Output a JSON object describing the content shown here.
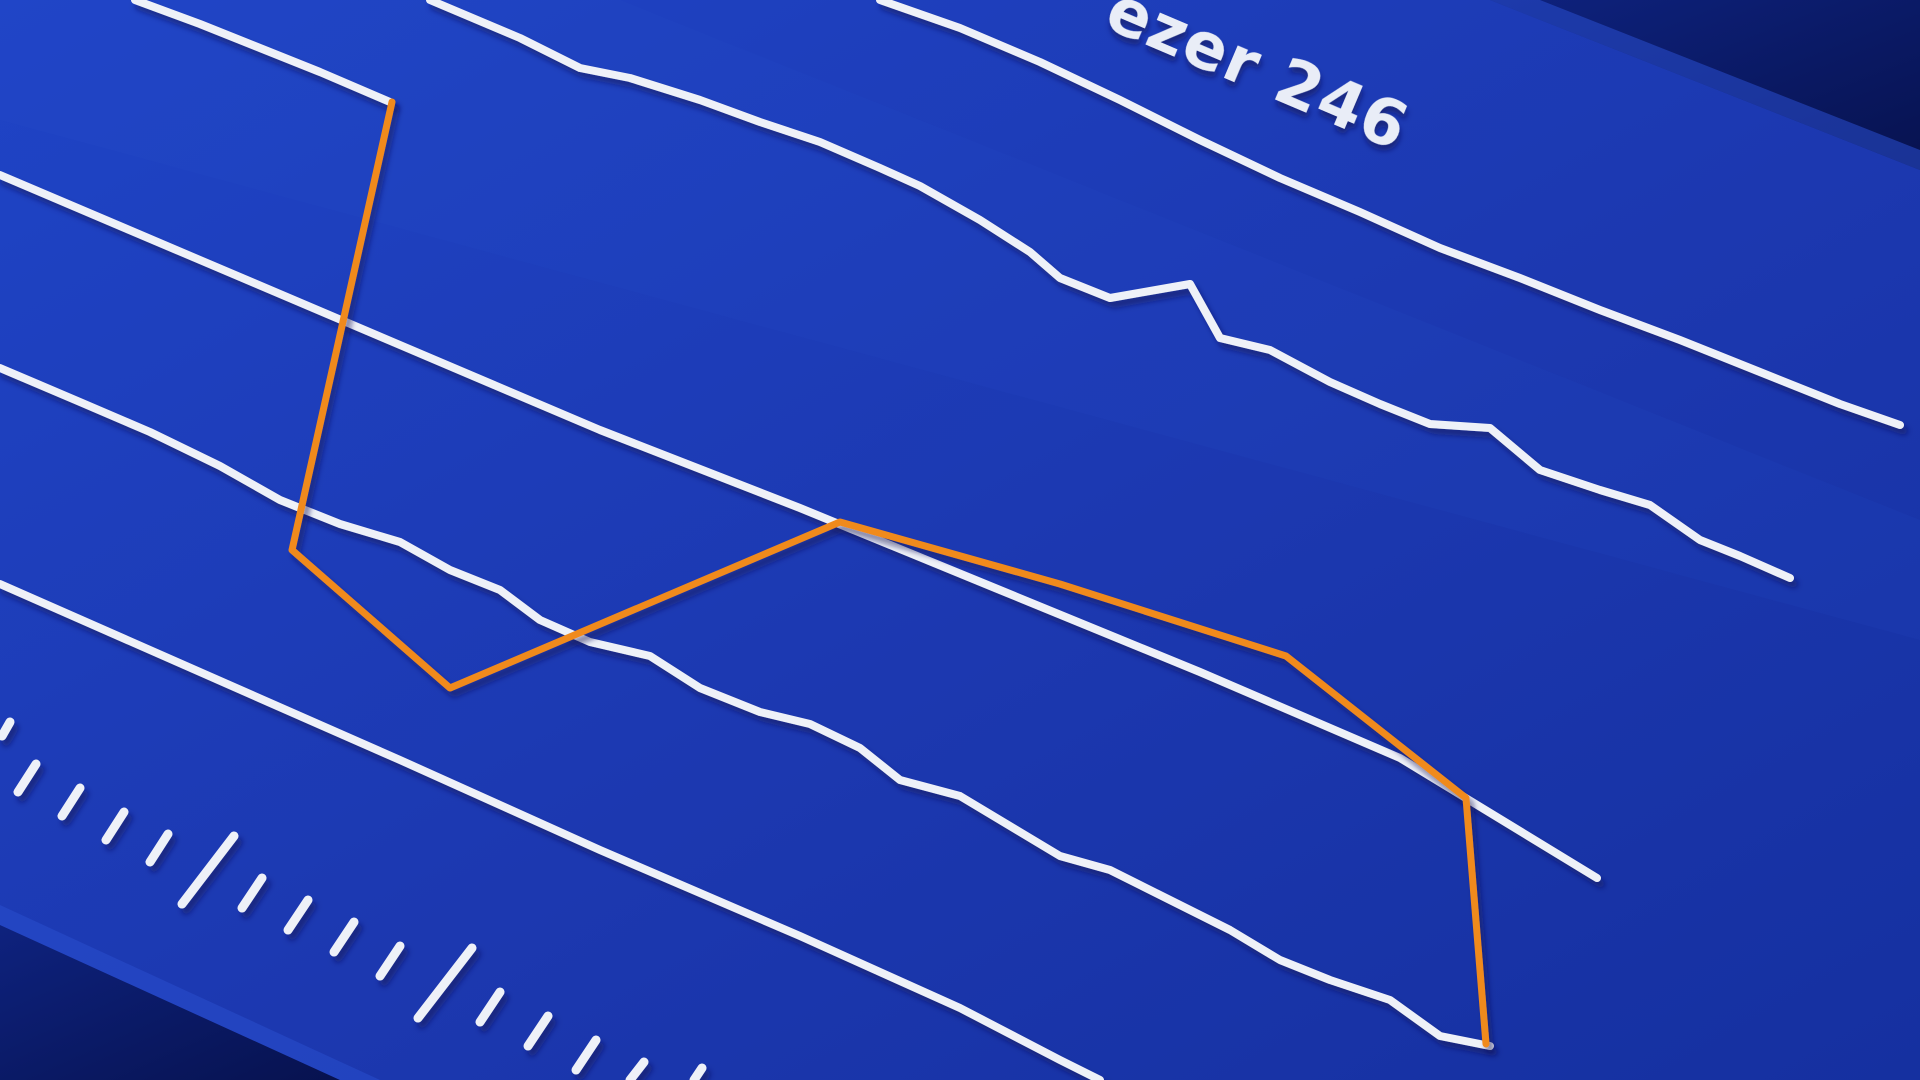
{
  "label": {
    "text": "ezer 246"
  },
  "colors": {
    "panel": "#1d3bb3",
    "panel_light": "#2447c4",
    "panel_dark": "#0c1d78",
    "edge_shadow": "#081458",
    "white_line": "#eef1f8",
    "orange_line": "#f08a1e",
    "label": "#e9edf7"
  }
}
